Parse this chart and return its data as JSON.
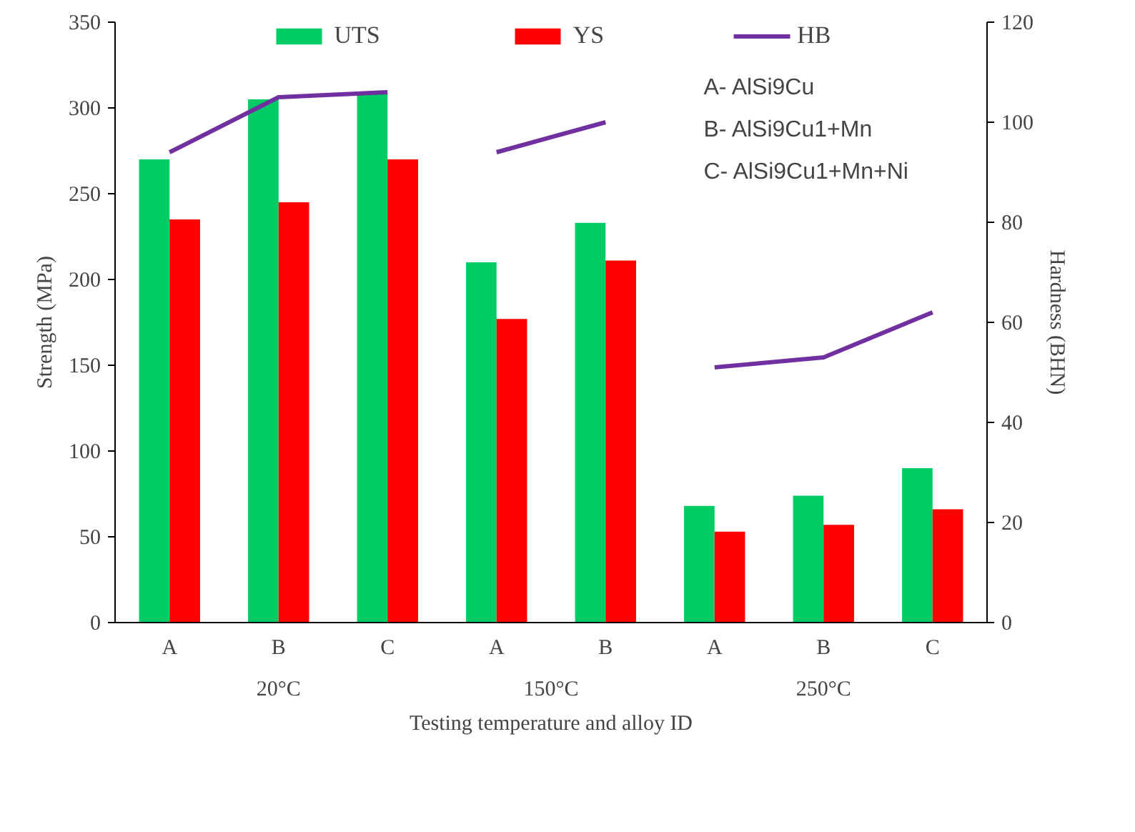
{
  "chart_data": {
    "type": "bar",
    "xlabel": "Testing temperature and alloy ID",
    "ylabel": "Strength (MPa)",
    "y2label": "Hardness (BHN)",
    "categories": [
      "A",
      "B",
      "C",
      "A",
      "B",
      "A",
      "B",
      "C"
    ],
    "series": [
      {
        "name": "UTS",
        "color": "#00cc66",
        "values": [
          270,
          305,
          308,
          210,
          233,
          68,
          74,
          90
        ]
      },
      {
        "name": "YS",
        "color": "#ff0000",
        "values": [
          235,
          245,
          270,
          177,
          211,
          53,
          57,
          66
        ]
      },
      {
        "name": "HB",
        "type": "line",
        "axis": "y2",
        "color": "#7030a0",
        "values": [
          94,
          105,
          106,
          94,
          100,
          51,
          53,
          62
        ]
      }
    ],
    "annotations": [
      "20°C",
      "150°C",
      "250°C",
      "A- AlSi9Cu",
      "B- AlSi9Cu1+Mn",
      "C- AlSi9Cu1+Mn+Ni"
    ],
    "ylim": [
      0,
      350
    ],
    "yticks": [
      0,
      50,
      100,
      150,
      200,
      250,
      300,
      350
    ],
    "y2lim": [
      0,
      120
    ],
    "y2ticks": [
      0,
      20,
      40,
      60,
      80,
      100,
      120
    ],
    "grid": false,
    "legend": "top",
    "marker": "none",
    "line_style": "solid"
  }
}
